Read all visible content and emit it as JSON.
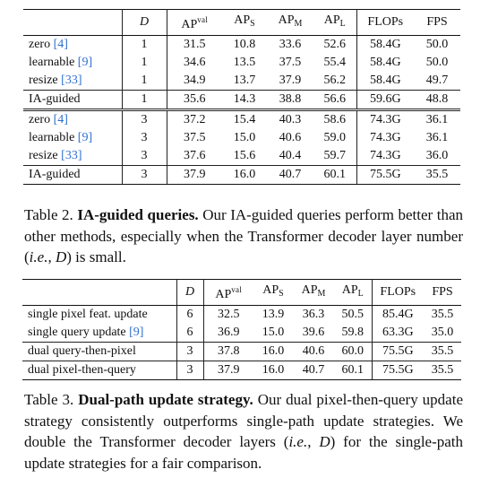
{
  "table2": {
    "headers": {
      "method": "",
      "D": "D",
      "ap": "AP",
      "ap_sup": "val",
      "aps": "AP",
      "aps_sub": "S",
      "apm": "AP",
      "apm_sub": "M",
      "apl": "AP",
      "apl_sub": "L",
      "flops": "FLOPs",
      "fps": "FPS"
    },
    "rows": [
      {
        "method": "zero ",
        "cite": "[4]",
        "D": "1",
        "ap": "31.5",
        "aps": "10.8",
        "apm": "33.6",
        "apl": "52.6",
        "flops": "58.4G",
        "fps": "50.0"
      },
      {
        "method": "learnable ",
        "cite": "[9]",
        "D": "1",
        "ap": "34.6",
        "aps": "13.5",
        "apm": "37.5",
        "apl": "55.4",
        "flops": "58.4G",
        "fps": "50.0"
      },
      {
        "method": "resize ",
        "cite": "[33]",
        "D": "1",
        "ap": "34.9",
        "aps": "13.7",
        "apm": "37.9",
        "apl": "56.2",
        "flops": "58.4G",
        "fps": "49.7"
      },
      {
        "method": "IA-guided",
        "cite": "",
        "D": "1",
        "ap": "35.6",
        "aps": "14.3",
        "apm": "38.8",
        "apl": "56.6",
        "flops": "59.6G",
        "fps": "48.8"
      },
      {
        "method": "zero ",
        "cite": "[4]",
        "D": "3",
        "ap": "37.2",
        "aps": "15.4",
        "apm": "40.3",
        "apl": "58.6",
        "flops": "74.3G",
        "fps": "36.1"
      },
      {
        "method": "learnable ",
        "cite": "[9]",
        "D": "3",
        "ap": "37.5",
        "aps": "15.0",
        "apm": "40.6",
        "apl": "59.0",
        "flops": "74.3G",
        "fps": "36.1"
      },
      {
        "method": "resize ",
        "cite": "[33]",
        "D": "3",
        "ap": "37.6",
        "aps": "15.6",
        "apm": "40.4",
        "apl": "59.7",
        "flops": "74.3G",
        "fps": "36.0"
      },
      {
        "method": "IA-guided",
        "cite": "",
        "D": "3",
        "ap": "37.9",
        "aps": "16.0",
        "apm": "40.7",
        "apl": "60.1",
        "flops": "75.5G",
        "fps": "35.5"
      }
    ],
    "caption": {
      "label": "Table 2. ",
      "title": "IA-guided queries.",
      "text_a": " Our IA-guided queries perform better than other methods, especially when the Transformer decoder layer number (",
      "ie": "i.e.",
      "text_b": ", ",
      "D": "D",
      "text_c": ") is small."
    }
  },
  "table3": {
    "headers": {
      "method": "",
      "D": "D",
      "ap": "AP",
      "ap_sup": "val",
      "aps": "AP",
      "aps_sub": "S",
      "apm": "AP",
      "apm_sub": "M",
      "apl": "AP",
      "apl_sub": "L",
      "flops": "FLOPs",
      "fps": "FPS"
    },
    "rows": [
      {
        "method": "single pixel feat. update",
        "cite": "",
        "D": "6",
        "ap": "32.5",
        "aps": "13.9",
        "apm": "36.3",
        "apl": "50.5",
        "flops": "85.4G",
        "fps": "35.5"
      },
      {
        "method": "single query update ",
        "cite": "[9]",
        "D": "6",
        "ap": "36.9",
        "aps": "15.0",
        "apm": "39.6",
        "apl": "59.8",
        "flops": "63.3G",
        "fps": "35.0"
      },
      {
        "method": "dual query-then-pixel",
        "cite": "",
        "D": "3",
        "ap": "37.8",
        "aps": "16.0",
        "apm": "40.6",
        "apl": "60.0",
        "flops": "75.5G",
        "fps": "35.5"
      },
      {
        "method": "dual pixel-then-query",
        "cite": "",
        "D": "3",
        "ap": "37.9",
        "aps": "16.0",
        "apm": "40.7",
        "apl": "60.1",
        "flops": "75.5G",
        "fps": "35.5"
      }
    ],
    "caption": {
      "label": "Table 3. ",
      "title": "Dual-path update strategy.",
      "text_a": " Our dual pixel-then-query update strategy consistently outperforms single-path update strategies. We double the Transformer decoder layers (",
      "ie": "i.e.",
      "text_b": ", ",
      "D": "D",
      "text_c": ") for the single-path update strategies for a fair comparison."
    }
  }
}
